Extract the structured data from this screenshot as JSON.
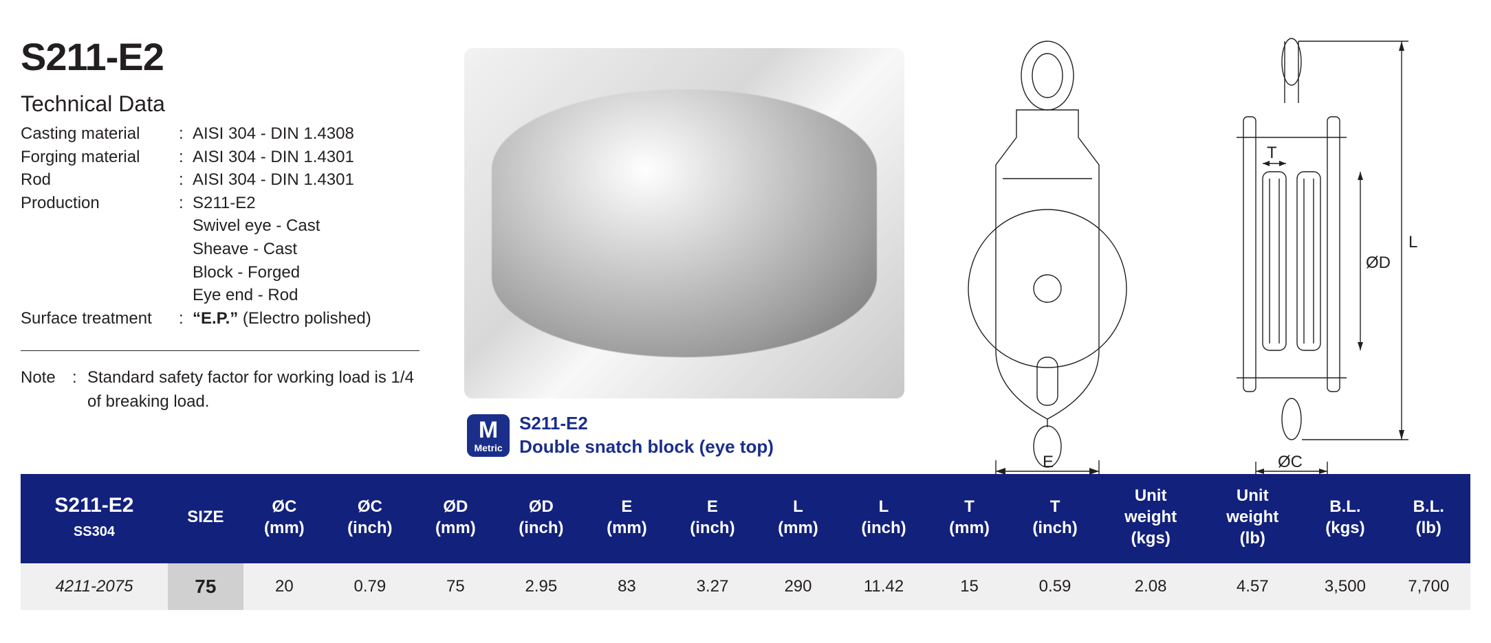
{
  "product_code": "S211-E2",
  "section_title": "Technical Data",
  "specs": [
    {
      "label": "Casting material",
      "value": "AISI 304 - DIN 1.4308"
    },
    {
      "label": "Forging material",
      "value": "AISI 304 - DIN 1.4301"
    },
    {
      "label": "Rod",
      "value": "AISI 304 - DIN 1.4301"
    }
  ],
  "production_label": "Production",
  "production_lines": [
    "S211-E2",
    "Swivel eye - Cast",
    "Sheave - Cast",
    "Block - Forged",
    "Eye end - Rod"
  ],
  "surface_label": "Surface treatment",
  "surface_bold": "“E.P.”",
  "surface_rest": " (Electro polished)",
  "note_label": "Note",
  "note_text": "Standard safety factor for working load is 1/4 of breaking load.",
  "metric_badge": {
    "big": "M",
    "small": "Metric"
  },
  "caption_code": "S211-E2",
  "caption_desc": "Double snatch block (eye top)",
  "dim_labels": {
    "E": "E",
    "L": "L",
    "T": "T",
    "OC": "ØC",
    "OD": "ØD"
  },
  "table": {
    "header_first_top": "S211-E2",
    "header_first_sub": "SS304",
    "columns": [
      "SIZE",
      "ØC\n(mm)",
      "ØC\n(inch)",
      "ØD\n(mm)",
      "ØD\n(inch)",
      "E\n(mm)",
      "E\n(inch)",
      "L\n(mm)",
      "L\n(inch)",
      "T\n(mm)",
      "T\n(inch)",
      "Unit\nweight\n(kgs)",
      "Unit\nweight\n(lb)",
      "B.L.\n(kgs)",
      "B.L.\n(lb)"
    ],
    "row": {
      "partno": "4211-2075",
      "size": "75",
      "cells": [
        "20",
        "0.79",
        "75",
        "2.95",
        "83",
        "3.27",
        "290",
        "11.42",
        "15",
        "0.59",
        "2.08",
        "4.57",
        "3,500",
        "7,700"
      ]
    },
    "colors": {
      "header_bg": "#12217c",
      "header_fg": "#ffffff",
      "row_bg": "#f0f0f0",
      "size_bg": "#d0d0d0"
    }
  }
}
